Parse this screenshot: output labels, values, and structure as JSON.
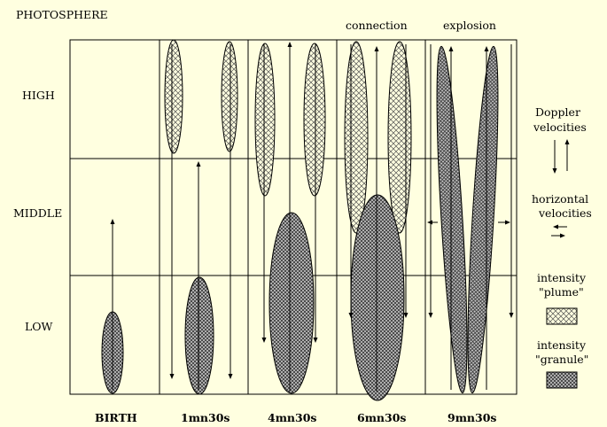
{
  "title": "PHOTOSPHERE",
  "rows": [
    "HIGH",
    "MIDDLE",
    "LOW"
  ],
  "columns": [
    "BIRTH",
    "1mn30s",
    "4mn30s",
    "6mn30s",
    "9mn30s"
  ],
  "phase_labels": [
    "connection",
    "explosion"
  ],
  "legend": {
    "doppler": [
      "Doppler",
      "velocities"
    ],
    "horizontal": [
      "horizontal",
      "velocities"
    ],
    "plume": [
      "intensity",
      "\"plume\""
    ],
    "granule": [
      "intensity",
      "\"granule\""
    ]
  },
  "colors": {
    "background": "#ffffe0",
    "plume_fill": "#ffffe0",
    "granule_fill": "#d8d8d8",
    "line": "#000000"
  }
}
